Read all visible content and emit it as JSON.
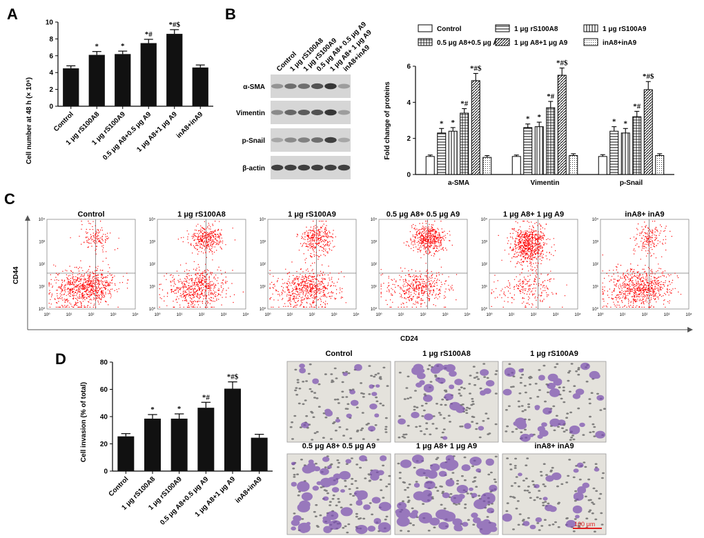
{
  "panels": {
    "A": "A",
    "B": "B",
    "C": "C",
    "D": "D"
  },
  "chart_data": [
    {
      "id": "A",
      "type": "bar",
      "title": "",
      "ylabel": "Cell number at 48 h (× 10⁶)",
      "xlabel": "",
      "ylim": [
        0,
        10
      ],
      "yticks": [
        0,
        2,
        4,
        6,
        8,
        10
      ],
      "categories": [
        "Control",
        "1 μg rS100A8",
        "1 μg rS100A9",
        "0.5 μg A8+0.5 μg A9",
        "1 μg A8+1 μg A9",
        "inA8+inA9"
      ],
      "values": [
        4.5,
        6.1,
        6.2,
        7.5,
        8.6,
        4.6
      ],
      "errors": [
        0.3,
        0.4,
        0.35,
        0.45,
        0.5,
        0.3
      ],
      "significance": [
        "",
        "*",
        "*",
        "*#",
        "*#$",
        ""
      ]
    },
    {
      "id": "B",
      "type": "bar",
      "title": "",
      "ylabel": "Fold change of proteins",
      "ylim": [
        0,
        6
      ],
      "yticks": [
        0,
        2,
        4,
        6
      ],
      "categories": [
        "a-SMA",
        "Vimentin",
        "p-Snail"
      ],
      "legend_position": "top",
      "series": [
        {
          "name": "Control",
          "pattern": "blank",
          "values": [
            1.0,
            1.0,
            1.0
          ],
          "errors": [
            0.08,
            0.08,
            0.1
          ]
        },
        {
          "name": "1 μg rS100A8",
          "pattern": "hlines",
          "values": [
            2.3,
            2.6,
            2.4
          ],
          "errors": [
            0.25,
            0.2,
            0.25
          ]
        },
        {
          "name": "1 μg rS100A9",
          "pattern": "vlines",
          "values": [
            2.4,
            2.65,
            2.3
          ],
          "errors": [
            0.2,
            0.25,
            0.25
          ]
        },
        {
          "name": "0.5 μg A8+0.5 μg A9",
          "pattern": "grid",
          "values": [
            3.4,
            3.7,
            3.2
          ],
          "errors": [
            0.25,
            0.35,
            0.3
          ]
        },
        {
          "name": "1 μg A8+1 μg A9",
          "pattern": "diag",
          "values": [
            5.2,
            5.5,
            4.7
          ],
          "errors": [
            0.4,
            0.4,
            0.45
          ]
        },
        {
          "name": "inA8+inA9",
          "pattern": "dots",
          "values": [
            0.95,
            1.05,
            1.05
          ],
          "errors": [
            0.1,
            0.1,
            0.1
          ]
        }
      ],
      "significance": [
        [
          "",
          "*",
          "*",
          "*#",
          "*#$",
          ""
        ],
        [
          "",
          "*",
          "*",
          "*#",
          "*#$",
          ""
        ],
        [
          "",
          "*",
          "*",
          "*#",
          "*#$",
          ""
        ]
      ]
    },
    {
      "id": "D",
      "type": "bar",
      "title": "",
      "ylabel": "Cell invasion (% of total)",
      "ylim": [
        0,
        80
      ],
      "yticks": [
        0,
        20,
        40,
        60,
        80
      ],
      "categories": [
        "Control",
        "1 μg rS100A8",
        "1 μg rS100A9",
        "0.5 μg A8+0.5 μg A9",
        "1 μg A8+1 μg A9",
        "inA8+inA9"
      ],
      "values": [
        25.5,
        38.5,
        38.5,
        46.5,
        60.5,
        24.5
      ],
      "errors": [
        2.0,
        3.0,
        3.5,
        4.0,
        5.0,
        2.5
      ],
      "significance": [
        "",
        "*",
        "*",
        "*#",
        "*#$",
        ""
      ]
    }
  ],
  "blot": {
    "lanes": [
      "Control",
      "1 μg rS100A8",
      "1 μg rS100A9",
      "0.5 μg A8+ 0.5 μg A9",
      "1 μg A8+ 1 μg A9",
      "inA8+inA9"
    ],
    "rows": [
      {
        "label": "α-SMA",
        "intensity": [
          0.35,
          0.55,
          0.55,
          0.7,
          0.85,
          0.3
        ]
      },
      {
        "label": "Vimentin",
        "intensity": [
          0.4,
          0.6,
          0.65,
          0.7,
          0.85,
          0.3
        ]
      },
      {
        "label": "p-Snail",
        "intensity": [
          0.25,
          0.4,
          0.45,
          0.55,
          0.8,
          0.25
        ]
      },
      {
        "label": "β-actin",
        "intensity": [
          0.8,
          0.8,
          0.8,
          0.8,
          0.8,
          0.8
        ]
      }
    ]
  },
  "flow": {
    "xlabel": "CD24",
    "ylabel": "CD44",
    "tick_labels": [
      "10⁰",
      "10¹",
      "10²",
      "10³",
      "10⁴"
    ],
    "plots": [
      {
        "title": "Control",
        "upper_fraction": 0.15
      },
      {
        "title": "1 μg rS100A8",
        "upper_fraction": 0.35
      },
      {
        "title": "1 μg rS100A9",
        "upper_fraction": 0.35
      },
      {
        "title": "0.5 μg A8+ 0.5 μg A9",
        "upper_fraction": 0.55
      },
      {
        "title": "1 μg A8+ 1 μg A9",
        "upper_fraction": 0.75
      },
      {
        "title": "inA8+ inA9",
        "upper_fraction": 0.18
      }
    ]
  },
  "micrographs": {
    "titles": [
      "Control",
      "1 μg rS100A8",
      "1 μg rS100A9",
      "0.5 μg A8+ 0.5 μg A9",
      "1 μg A8+ 1 μg A9",
      "inA8+ inA9"
    ],
    "density": [
      0.25,
      0.45,
      0.45,
      0.75,
      0.9,
      0.3
    ],
    "scale_bar": "100 μm"
  },
  "colors": {
    "bar": "#111111",
    "flow": "#ff0000",
    "stain": "#7a4fb0",
    "blot": "#1a1a1a",
    "scale": "#e02020"
  }
}
